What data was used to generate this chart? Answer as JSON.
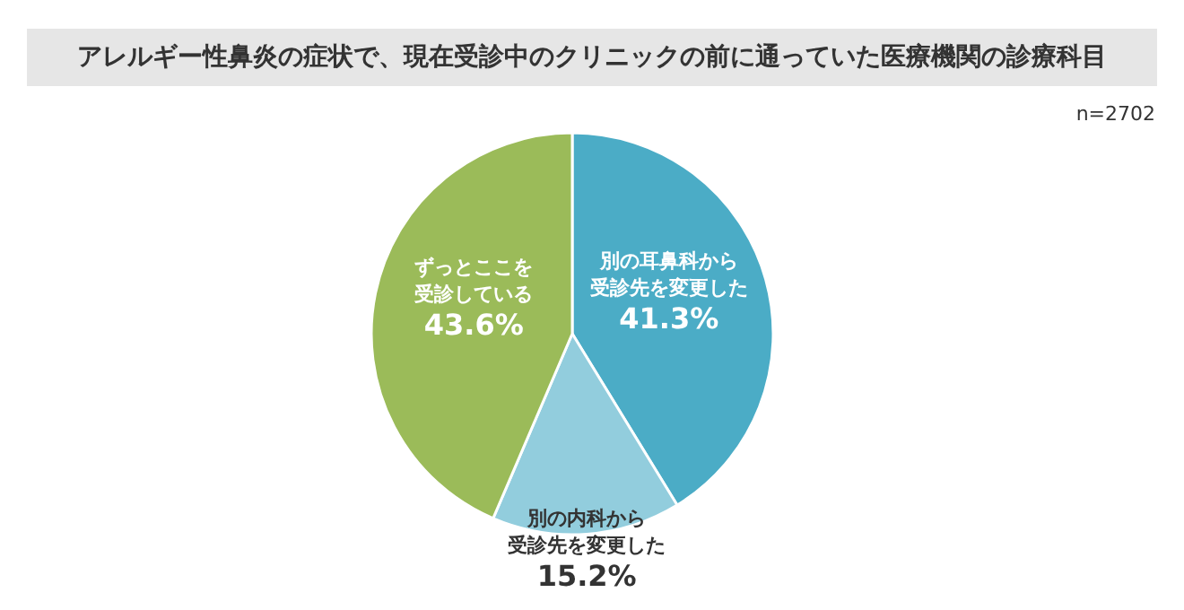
{
  "chart_data": {
    "type": "pie",
    "title": "アレルギー性鼻炎の症状で、現在受診中のクリニックの前に通っていた医療機関の診療科目",
    "categories": [
      "別の耳鼻科から受診先を変更した",
      "別の内科から受診先を変更した",
      "ずっとここを受診している"
    ],
    "values": [
      41.3,
      15.2,
      43.6
    ],
    "value_labels": [
      "41.3%",
      "15.2%",
      "43.6%"
    ],
    "colors": [
      "#4bacc6",
      "#92cddd",
      "#9bbb59"
    ],
    "annotations": [
      "n=2702"
    ]
  }
}
